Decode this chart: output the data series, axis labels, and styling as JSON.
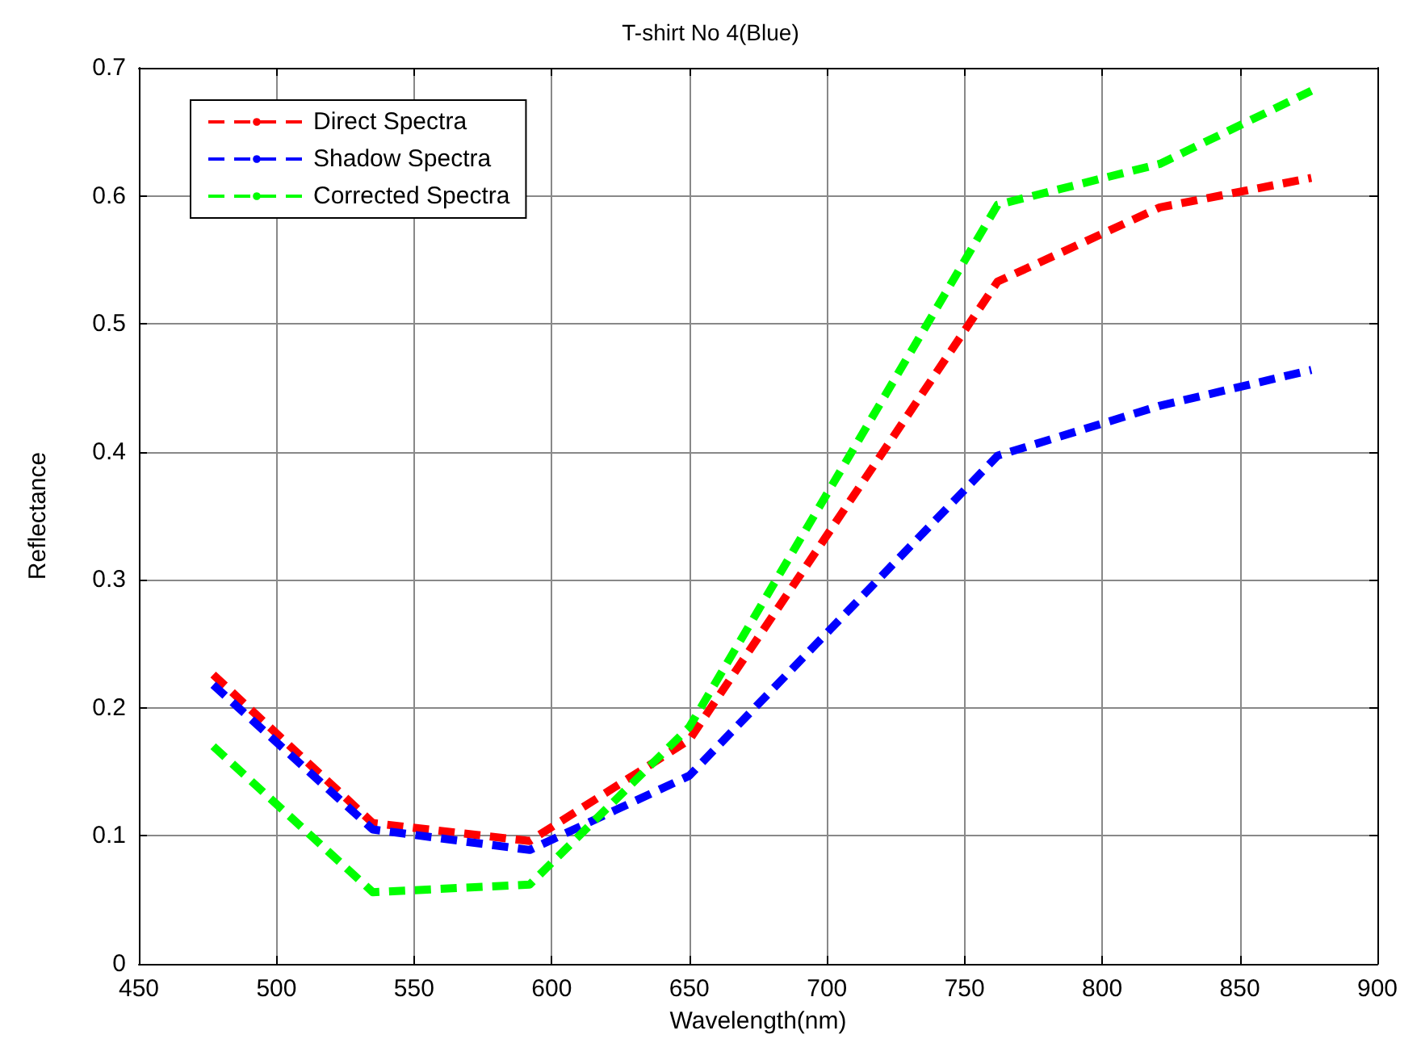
{
  "chart_data": {
    "type": "line",
    "title": "T-shirt No 4(Blue)",
    "xlabel": "Wavelength(nm)",
    "ylabel": "Reflectance",
    "x": [
      477,
      535,
      592,
      650,
      762,
      821,
      876
    ],
    "series": [
      {
        "name": "Direct Spectra",
        "color": "#ff0000",
        "values": [
          0.226,
          0.11,
          0.096,
          0.175,
          0.533,
          0.591,
          0.614
        ]
      },
      {
        "name": "Shadow Spectra",
        "color": "#0000ff",
        "values": [
          0.218,
          0.105,
          0.089,
          0.147,
          0.397,
          0.436,
          0.464
        ]
      },
      {
        "name": "Corrected Spectra",
        "color": "#00ff00",
        "values": [
          0.17,
          0.056,
          0.062,
          0.185,
          0.593,
          0.625,
          0.682
        ]
      }
    ],
    "xlim": [
      450,
      900
    ],
    "xticks": [
      450,
      500,
      550,
      600,
      650,
      700,
      750,
      800,
      850,
      900
    ],
    "ylim": [
      0,
      0.7
    ],
    "yticks": [
      0,
      0.1,
      0.2,
      0.3,
      0.4,
      0.5,
      0.6,
      0.7
    ],
    "grid": true,
    "legend": "top left",
    "marker": "none",
    "line_style": "dashed"
  }
}
